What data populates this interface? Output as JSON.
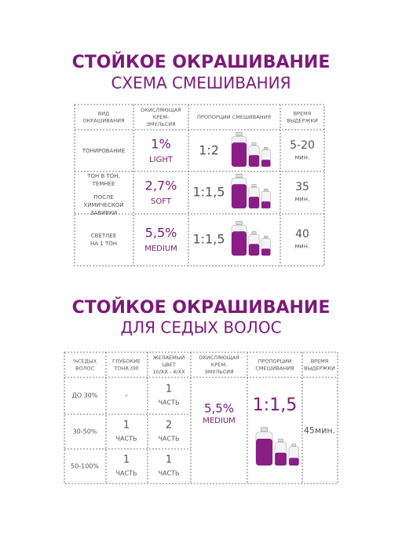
{
  "section1": {
    "title": "СТОЙКОЕ ОКРАШИВАНИЕ",
    "subtitle": "СХЕМА СМЕШИВАНИЯ",
    "table": {
      "header": [
        [
          "ВИД",
          "ОКРАШИВАНИЯ"
        ],
        [
          "ОКИСЛЯЮЩАЯ",
          "КРЕМ-",
          "ЭМУЛЬСИЯ"
        ],
        [
          "ПРОПОРЦИИ СМЕШИВАНИЯ"
        ],
        [
          "ВРЕМЯ",
          "ВЫДЕРЖКИ"
        ]
      ],
      "rows": [
        {
          "type": [
            [
              "ТОНИРОВАНИЕ"
            ]
          ],
          "percent": "1%",
          "oxidant": "LIGHT",
          "ratio": "1:2",
          "time": "5-20",
          "unit": "мин."
        },
        {
          "type": [
            [
              "ТОН В ТОН,",
              "ТЕМНЕЕ"
            ],
            [
              "ПОСЛЕ",
              "ХИМИЧЕСКОЙ",
              "ЗАВИВКИ"
            ]
          ],
          "percent": "2,7%",
          "oxidant": "SOFT",
          "ratio": "1:1,5",
          "time": "35",
          "unit": "мин."
        },
        {
          "type": [
            [
              "СВЕТЛЕЕ",
              "НА 1 ТОН"
            ]
          ],
          "percent": "5,5%",
          "oxidant": "MEDIUM",
          "ratio": "1:1,5",
          "time": "40",
          "unit": "мин."
        }
      ]
    }
  },
  "section2": {
    "title": "СТОЙКОЕ ОКРАШИВАНИЕ",
    "subtitle": "ДЛЯ СЕДЫХ ВОЛОС",
    "table": {
      "header": [
        [
          "%СЕДЫХ",
          "ВОЛОС"
        ],
        [
          "ГЛУБОКИЕ",
          "ТОНА /00"
        ],
        [
          "ЖЕЛАЕМЫЙ",
          "ЦВЕТ",
          "10/ХХ - 4/ХХ"
        ],
        [
          "ОКИСЛЯЮЩАЯ",
          "КРЕМ-",
          "ЭМУЛЬСИЯ"
        ],
        [
          "ПРОПОРЦИИ",
          "СМЕШИВАНИЯ"
        ],
        [
          "ВРЕМЯ",
          "ВЫДЕРЖКИ"
        ]
      ],
      "rows": [
        {
          "gray": "ДО 30%",
          "deep": [
            "-"
          ],
          "desired": [
            "1",
            "ЧАСТЬ"
          ]
        },
        {
          "gray": "30-50%",
          "deep": [
            "1",
            "ЧАСТЬ"
          ],
          "desired": [
            "2",
            "ЧАСТЬ"
          ]
        },
        {
          "gray": "50-100%",
          "deep": [
            "1",
            "ЧАСТЬ"
          ],
          "desired": [
            "1",
            "ЧАСТЬ"
          ]
        }
      ],
      "percent": "5,5%",
      "oxidant": "MEDIUM",
      "ratio": "1:1,5",
      "time": "45мин."
    }
  }
}
